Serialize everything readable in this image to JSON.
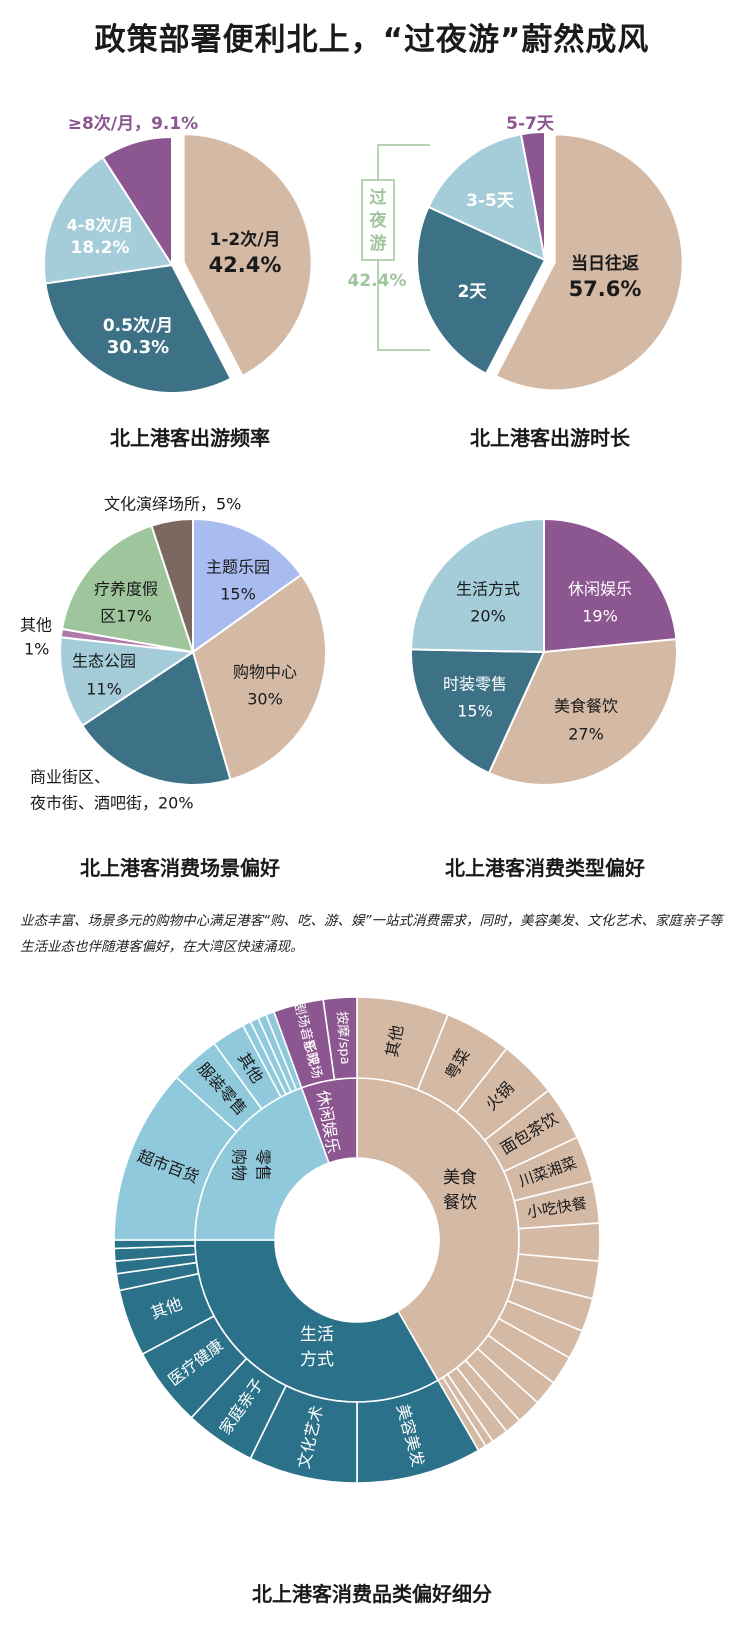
{
  "title": "政策部署便利北上，“过夜游”蔚然成风",
  "intro": "业态丰富、场景多元的购物中心满足港客“购、吃、游、娱”一站式消费需求，同时，美容美发、文化艺术、家庭亲子等生活业态也伴随港客偏好，在大湾区快速涌现。",
  "colors": {
    "beige": "#d4b9a5",
    "teal": "#3c7186",
    "lightblue": "#a5cdd9",
    "purple": "#8c5690",
    "green": "#9ec59b",
    "lavender": "#a9bcf0",
    "brown": "#7b6860",
    "mauve": "#b07aa8",
    "deepteal": "#2b7189",
    "skyblue": "#8fc9db",
    "bracket": "#9ec59b"
  },
  "chart_data": [
    {
      "type": "pie",
      "title": "北上港客出游频率",
      "slices": [
        {
          "label": "1-2次/月",
          "value": 42.4,
          "value_label": "42.4%"
        },
        {
          "label": "0.5次/月",
          "value": 30.3,
          "value_label": "30.3%"
        },
        {
          "label": "4-8次/月",
          "value": 18.2,
          "value_label": "18.2%"
        },
        {
          "label": "≥8次/月，9.1%",
          "value": 9.1
        }
      ]
    },
    {
      "type": "pie",
      "title": "北上港客出游时长",
      "slices": [
        {
          "label": "当日往返",
          "value": 57.6,
          "value_label": "57.6%"
        },
        {
          "label": "2天",
          "value": 24.2
        },
        {
          "label": "3-5天",
          "value": 15.2
        },
        {
          "label": "5-7天",
          "value": 3.0
        }
      ],
      "annotation": {
        "label_chars": [
          "过",
          "夜",
          "游"
        ],
        "value": "42.4%"
      }
    },
    {
      "type": "pie",
      "title": "北上港客消费场景偏好",
      "slices": [
        {
          "label": "主题乐园",
          "value_label": "15%",
          "value": 15
        },
        {
          "label": "购物中心",
          "value_label": "30%",
          "value": 30
        },
        {
          "label": "商业街区、",
          "label2": "夜市街、酒吧街，20%",
          "value": 20
        },
        {
          "label": "生态公园",
          "value_label": "11%",
          "value": 11
        },
        {
          "label": "其他",
          "value_label": "1%",
          "value": 1
        },
        {
          "label": "疗养度假",
          "label2": "区17%",
          "value": 17
        },
        {
          "label": "文化演绎场所，5%",
          "value": 5
        }
      ]
    },
    {
      "type": "pie",
      "title": "北上港客消费类型偏好",
      "slices": [
        {
          "label": "休闲娱乐",
          "value_label": "19%",
          "value": 19
        },
        {
          "label": "美食餐饮",
          "value_label": "27%",
          "value": 27
        },
        {
          "label": "时装零售",
          "value_label": "15%",
          "value": 15
        },
        {
          "label": "生活方式",
          "value_label": "20%",
          "value": 20
        }
      ]
    },
    {
      "type": "sunburst",
      "title": "北上港客消费品类偏好细分",
      "inner": [
        {
          "label": "美食",
          "label2": "餐饮",
          "start": 0,
          "end": 150
        },
        {
          "label": "生活",
          "label2": "方式",
          "start": 150,
          "end": 270
        },
        {
          "label": "购物",
          "label2": "零售",
          "start": 270,
          "end": 340
        },
        {
          "label": "休闲娱乐",
          "start": 340,
          "end": 360
        }
      ],
      "outer": [
        {
          "label": "其他",
          "start": 0,
          "end": 22,
          "group": "food"
        },
        {
          "label": "粤菜",
          "start": 22,
          "end": 38,
          "group": "food"
        },
        {
          "label": "火锅",
          "start": 38,
          "end": 52,
          "group": "food"
        },
        {
          "label": "面包茶饮",
          "start": 52,
          "end": 65,
          "group": "food"
        },
        {
          "label": "川菜湘菜",
          "start": 65,
          "end": 76,
          "group": "food"
        },
        {
          "label": "小吃快餐",
          "start": 76,
          "end": 86,
          "group": "food"
        },
        {
          "label": "",
          "start": 86,
          "end": 95,
          "group": "food"
        },
        {
          "label": "",
          "start": 95,
          "end": 104,
          "group": "food"
        },
        {
          "label": "",
          "start": 104,
          "end": 112,
          "group": "food"
        },
        {
          "label": "",
          "start": 112,
          "end": 119,
          "group": "food"
        },
        {
          "label": "",
          "start": 119,
          "end": 126,
          "group": "food"
        },
        {
          "label": "",
          "start": 126,
          "end": 132,
          "group": "food"
        },
        {
          "label": "",
          "start": 132,
          "end": 138,
          "group": "food"
        },
        {
          "label": "",
          "start": 138,
          "end": 142,
          "group": "food"
        },
        {
          "label": "",
          "start": 142,
          "end": 146,
          "group": "food"
        },
        {
          "label": "",
          "start": 146,
          "end": 148,
          "group": "food"
        },
        {
          "label": "",
          "start": 148,
          "end": 150,
          "group": "food"
        },
        {
          "label": "美容美发",
          "start": 150,
          "end": 180,
          "group": "life"
        },
        {
          "label": "文化艺术",
          "start": 180,
          "end": 206,
          "group": "life"
        },
        {
          "label": "家庭亲子",
          "start": 206,
          "end": 223,
          "group": "life"
        },
        {
          "label": "医疗健康",
          "start": 223,
          "end": 242,
          "group": "life"
        },
        {
          "label": "其他",
          "start": 242,
          "end": 258,
          "group": "life"
        },
        {
          "label": "",
          "start": 258,
          "end": 262,
          "group": "life"
        },
        {
          "label": "",
          "start": 262,
          "end": 265,
          "group": "life"
        },
        {
          "label": "",
          "start": 265,
          "end": 268,
          "group": "life"
        },
        {
          "label": "",
          "start": 268,
          "end": 270,
          "group": "life"
        },
        {
          "label": "超市百货",
          "start": 270,
          "end": 312,
          "group": "retail"
        },
        {
          "label": "服装零售",
          "start": 312,
          "end": 324,
          "group": "retail"
        },
        {
          "label": "其他",
          "start": 324,
          "end": 332,
          "group": "retail"
        },
        {
          "label": "",
          "start": 332,
          "end": 334,
          "group": "retail"
        },
        {
          "label": "",
          "start": 334,
          "end": 336,
          "group": "retail"
        },
        {
          "label": "",
          "start": 336,
          "end": 338,
          "group": "retail"
        },
        {
          "label": "",
          "start": 338,
          "end": 340,
          "group": "retail"
        },
        {
          "label": "剧场、影院",
          "label2": "音乐现场",
          "start": 340,
          "end": 352,
          "group": "fun"
        },
        {
          "label": "按摩/spa",
          "start": 352,
          "end": 360,
          "group": "fun"
        }
      ]
    }
  ]
}
